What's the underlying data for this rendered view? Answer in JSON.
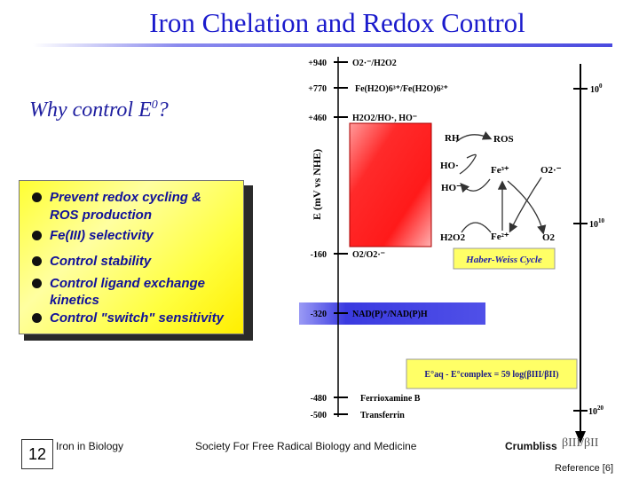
{
  "title": "Iron Chelation and Redox Control",
  "subtitle": {
    "text": "Why control E",
    "sup": "0",
    "suffix": "?"
  },
  "bullets": [
    {
      "text": "Prevent redox cycling &",
      "dot": true
    },
    {
      "text": "ROS production",
      "dot": false
    },
    {
      "text": "Fe(III) selectivity",
      "dot": true
    },
    {
      "text": "Control stability",
      "dot": true
    },
    {
      "text": "Control ligand exchange",
      "dot": true
    },
    {
      "text": "kinetics",
      "dot": false
    },
    {
      "text": "Control \"switch\" sensitivity",
      "dot": true
    }
  ],
  "axis_label": "E  (mV vs NHE)",
  "potential_levels": [
    {
      "value": "+940",
      "label": "O2·⁻/H2O2"
    },
    {
      "value": "+770",
      "label": "Fe(H2O)6³⁺/Fe(H2O)6²⁺"
    },
    {
      "value": "+460",
      "label": "H2O2/HO·, HO⁻"
    },
    {
      "value": "-160",
      "label": "O2/O2·⁻"
    },
    {
      "value": "-320",
      "label": "NAD(P)⁺/NAD(P)H"
    },
    {
      "value": "-480",
      "label": "Ferrioxamine B"
    },
    {
      "value": "-500",
      "label": "Transferrin"
    }
  ],
  "beta_ticks": [
    "10",
    "10",
    "10"
  ],
  "beta_exps": [
    "0",
    "10",
    "20"
  ],
  "cycle": {
    "species": [
      "RH",
      "ROS",
      "HO·",
      "HO⁻",
      "Fe³⁺",
      "O2·⁻",
      "H2O2",
      "Fe²⁺",
      "O2"
    ],
    "caption": "Haber-Weiss Cycle"
  },
  "equation": "E°aq - E°complex = 59 log(βIII/βII)",
  "footer": {
    "slide_number": "12",
    "course": "Iron in Biology",
    "society": "Society For Free Radical Biology and Medicine",
    "author": "Crumbliss",
    "beta": "βIII/βII",
    "reference": "Reference [6]"
  },
  "colors": {
    "title": "#1a1acc",
    "red_box": "#ff2222",
    "blue_band": "#3535e0",
    "yellow": "#ffff66",
    "caption_bg": "#ffff66"
  }
}
